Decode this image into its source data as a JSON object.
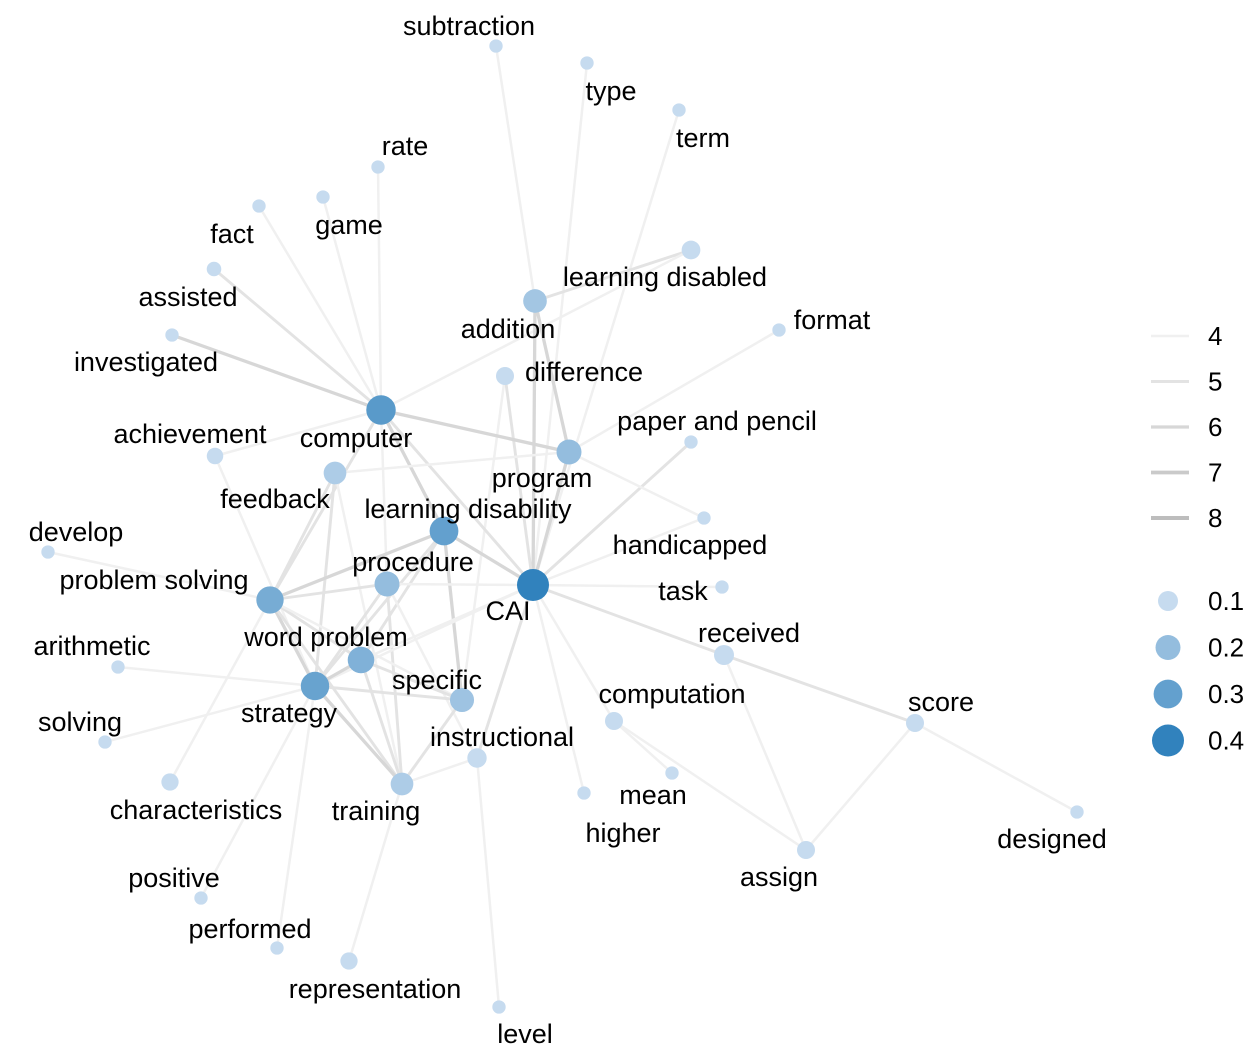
{
  "graph": {
    "nodes": [
      {
        "id": "subtraction",
        "label": "subtraction",
        "size": 0.02
      },
      {
        "id": "type",
        "label": "type",
        "size": 0.02
      },
      {
        "id": "term",
        "label": "term",
        "size": 0.02
      },
      {
        "id": "rate",
        "label": "rate",
        "size": 0.02
      },
      {
        "id": "game",
        "label": "game",
        "size": 0.02
      },
      {
        "id": "fact",
        "label": "fact",
        "size": 0.02
      },
      {
        "id": "learning-disabled",
        "label": "learning disabled",
        "size": 0.08
      },
      {
        "id": "assisted",
        "label": "assisted",
        "size": 0.03
      },
      {
        "id": "addition",
        "label": "addition",
        "size": 0.17
      },
      {
        "id": "format",
        "label": "format",
        "size": 0.02
      },
      {
        "id": "investigated",
        "label": "investigated",
        "size": 0.02
      },
      {
        "id": "difference",
        "label": "difference",
        "size": 0.07
      },
      {
        "id": "computer",
        "label": "computer",
        "size": 0.32
      },
      {
        "id": "paper-and-pencil",
        "label": "paper and pencil",
        "size": 0.02
      },
      {
        "id": "achievement",
        "label": "achievement",
        "size": 0.05
      },
      {
        "id": "program",
        "label": "program",
        "size": 0.2
      },
      {
        "id": "feedback",
        "label": "feedback",
        "size": 0.15
      },
      {
        "id": "learning-disability",
        "label": "learning disability",
        "size": 0.3
      },
      {
        "id": "develop",
        "label": "develop",
        "size": 0.02
      },
      {
        "id": "handicapped",
        "label": "handicapped",
        "size": 0.02
      },
      {
        "id": "procedure",
        "label": "procedure",
        "size": 0.2
      },
      {
        "id": "cai",
        "label": "CAI",
        "size": 0.4
      },
      {
        "id": "task",
        "label": "task",
        "size": 0.02
      },
      {
        "id": "problem-solving",
        "label": "problem solving",
        "size": 0.26
      },
      {
        "id": "arithmetic",
        "label": "arithmetic",
        "size": 0.02
      },
      {
        "id": "received",
        "label": "received",
        "size": 0.1
      },
      {
        "id": "word-problem",
        "label": "word problem",
        "size": 0.24
      },
      {
        "id": "specific",
        "label": "specific",
        "size": 0.18
      },
      {
        "id": "computation",
        "label": "computation",
        "size": 0.07
      },
      {
        "id": "score",
        "label": "score",
        "size": 0.07
      },
      {
        "id": "strategy",
        "label": "strategy",
        "size": 0.29
      },
      {
        "id": "solving",
        "label": "solving",
        "size": 0.02
      },
      {
        "id": "instructional",
        "label": "instructional",
        "size": 0.09
      },
      {
        "id": "mean",
        "label": "mean",
        "size": 0.02
      },
      {
        "id": "characteristics",
        "label": "characteristics",
        "size": 0.06
      },
      {
        "id": "training",
        "label": "training",
        "size": 0.15
      },
      {
        "id": "higher",
        "label": "higher",
        "size": 0.02
      },
      {
        "id": "designed",
        "label": "designed",
        "size": 0.02
      },
      {
        "id": "assign",
        "label": "assign",
        "size": 0.07
      },
      {
        "id": "positive",
        "label": "positive",
        "size": 0.02
      },
      {
        "id": "performed",
        "label": "performed",
        "size": 0.02
      },
      {
        "id": "representation",
        "label": "representation",
        "size": 0.06
      },
      {
        "id": "level",
        "label": "level",
        "size": 0.02
      }
    ],
    "edges": [
      {
        "source": "subtraction",
        "target": "addition",
        "weight": 4
      },
      {
        "source": "type",
        "target": "cai",
        "weight": 4
      },
      {
        "source": "term",
        "target": "cai",
        "weight": 4
      },
      {
        "source": "rate",
        "target": "computer",
        "weight": 4
      },
      {
        "source": "game",
        "target": "computer",
        "weight": 4
      },
      {
        "source": "fact",
        "target": "computer",
        "weight": 4
      },
      {
        "source": "assisted",
        "target": "computer",
        "weight": 5
      },
      {
        "source": "investigated",
        "target": "computer",
        "weight": 6
      },
      {
        "source": "learning-disabled",
        "target": "addition",
        "weight": 5
      },
      {
        "source": "learning-disabled",
        "target": "computer",
        "weight": 4
      },
      {
        "source": "addition",
        "target": "cai",
        "weight": 6
      },
      {
        "source": "addition",
        "target": "program",
        "weight": 6
      },
      {
        "source": "format",
        "target": "program",
        "weight": 4
      },
      {
        "source": "difference",
        "target": "cai",
        "weight": 5
      },
      {
        "source": "difference",
        "target": "specific",
        "weight": 4
      },
      {
        "source": "computer",
        "target": "program",
        "weight": 6
      },
      {
        "source": "computer",
        "target": "learning-disability",
        "weight": 6
      },
      {
        "source": "computer",
        "target": "problem-solving",
        "weight": 5
      },
      {
        "source": "computer",
        "target": "procedure",
        "weight": 4
      },
      {
        "source": "computer",
        "target": "cai",
        "weight": 5
      },
      {
        "source": "paper-and-pencil",
        "target": "cai",
        "weight": 5
      },
      {
        "source": "program",
        "target": "cai",
        "weight": 6
      },
      {
        "source": "program",
        "target": "feedback",
        "weight": 4
      },
      {
        "source": "program",
        "target": "handicapped",
        "weight": 4
      },
      {
        "source": "achievement",
        "target": "computer",
        "weight": 4
      },
      {
        "source": "achievement",
        "target": "strategy",
        "weight": 4
      },
      {
        "source": "feedback",
        "target": "problem-solving",
        "weight": 5
      },
      {
        "source": "feedback",
        "target": "strategy",
        "weight": 5
      },
      {
        "source": "feedback",
        "target": "training",
        "weight": 4
      },
      {
        "source": "learning-disability",
        "target": "cai",
        "weight": 6
      },
      {
        "source": "learning-disability",
        "target": "problem-solving",
        "weight": 6
      },
      {
        "source": "learning-disability",
        "target": "word-problem",
        "weight": 5
      },
      {
        "source": "learning-disability",
        "target": "specific",
        "weight": 6
      },
      {
        "source": "learning-disability",
        "target": "strategy",
        "weight": 5
      },
      {
        "source": "develop",
        "target": "problem-solving",
        "weight": 4
      },
      {
        "source": "handicapped",
        "target": "cai",
        "weight": 4
      },
      {
        "source": "procedure",
        "target": "problem-solving",
        "weight": 5
      },
      {
        "source": "procedure",
        "target": "strategy",
        "weight": 5
      },
      {
        "source": "procedure",
        "target": "training",
        "weight": 5
      },
      {
        "source": "procedure",
        "target": "cai",
        "weight": 4
      },
      {
        "source": "procedure",
        "target": "instructional",
        "weight": 4
      },
      {
        "source": "task",
        "target": "cai",
        "weight": 4
      },
      {
        "source": "cai",
        "target": "received",
        "weight": 5
      },
      {
        "source": "cai",
        "target": "instructional",
        "weight": 5
      },
      {
        "source": "cai",
        "target": "computation",
        "weight": 4
      },
      {
        "source": "cai",
        "target": "higher",
        "weight": 4
      },
      {
        "source": "cai",
        "target": "word-problem",
        "weight": 4
      },
      {
        "source": "cai",
        "target": "strategy",
        "weight": 4
      },
      {
        "source": "problem-solving",
        "target": "word-problem",
        "weight": 5
      },
      {
        "source": "problem-solving",
        "target": "strategy",
        "weight": 6
      },
      {
        "source": "problem-solving",
        "target": "specific",
        "weight": 4
      },
      {
        "source": "problem-solving",
        "target": "training",
        "weight": 5
      },
      {
        "source": "problem-solving",
        "target": "characteristics",
        "weight": 4
      },
      {
        "source": "arithmetic",
        "target": "strategy",
        "weight": 4
      },
      {
        "source": "received",
        "target": "score",
        "weight": 5
      },
      {
        "source": "received",
        "target": "assign",
        "weight": 4
      },
      {
        "source": "word-problem",
        "target": "strategy",
        "weight": 6
      },
      {
        "source": "word-problem",
        "target": "specific",
        "weight": 5
      },
      {
        "source": "word-problem",
        "target": "training",
        "weight": 5
      },
      {
        "source": "specific",
        "target": "strategy",
        "weight": 5
      },
      {
        "source": "specific",
        "target": "training",
        "weight": 5
      },
      {
        "source": "computation",
        "target": "mean",
        "weight": 4
      },
      {
        "source": "computation",
        "target": "assign",
        "weight": 4
      },
      {
        "source": "score",
        "target": "designed",
        "weight": 4
      },
      {
        "source": "score",
        "target": "assign",
        "weight": 4
      },
      {
        "source": "strategy",
        "target": "training",
        "weight": 6
      },
      {
        "source": "strategy",
        "target": "solving",
        "weight": 4
      },
      {
        "source": "strategy",
        "target": "positive",
        "weight": 4
      },
      {
        "source": "strategy",
        "target": "performed",
        "weight": 4
      },
      {
        "source": "training",
        "target": "representation",
        "weight": 4
      },
      {
        "source": "instructional",
        "target": "level",
        "weight": 4
      },
      {
        "source": "instructional",
        "target": "training",
        "weight": 4
      }
    ]
  },
  "legend": {
    "edge_weights": [
      {
        "label": "4",
        "weight": 4
      },
      {
        "label": "5",
        "weight": 5
      },
      {
        "label": "6",
        "weight": 6
      },
      {
        "label": "7",
        "weight": 7
      },
      {
        "label": "8",
        "weight": 8
      }
    ],
    "node_sizes": [
      {
        "label": "0.1",
        "value": 0.1
      },
      {
        "label": "0.2",
        "value": 0.2
      },
      {
        "label": "0.3",
        "value": 0.3
      },
      {
        "label": "0.4",
        "value": 0.4
      }
    ]
  },
  "colors": {
    "node_low": "#c6dbef",
    "node_high": "#3182bd",
    "edge_low": "#f0f0f0",
    "edge_high": "#bdbdbd"
  }
}
